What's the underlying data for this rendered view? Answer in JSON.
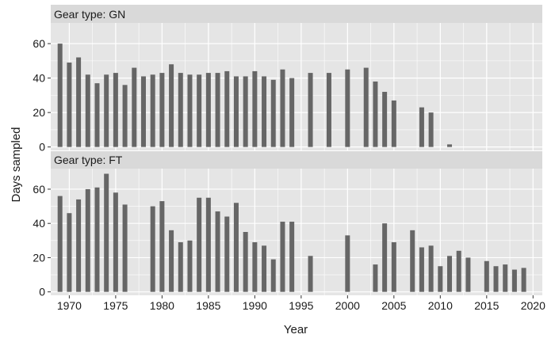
{
  "chart_data": {
    "type": "bar",
    "xlabel": "Year",
    "ylabel": "Days sampled",
    "xlim": [
      1968,
      2021
    ],
    "x_ticks": [
      1970,
      1975,
      1980,
      1985,
      1990,
      1995,
      2000,
      2005,
      2010,
      2015,
      2020
    ],
    "y_ticks": [
      0,
      20,
      40,
      60
    ],
    "grid": true,
    "colors": {
      "bar": "#666666",
      "panel": "#e5e5e5",
      "gridline": "#ffffff"
    },
    "panels": [
      {
        "label": "Gear type: GN",
        "ylim": [
          -2,
          72
        ],
        "x": [
          1969,
          1970,
          1971,
          1972,
          1973,
          1974,
          1975,
          1976,
          1977,
          1978,
          1979,
          1980,
          1981,
          1982,
          1983,
          1984,
          1985,
          1986,
          1987,
          1988,
          1989,
          1990,
          1991,
          1992,
          1993,
          1994,
          1996,
          1998,
          2000,
          2002,
          2003,
          2004,
          2005,
          2008,
          2009,
          2011
        ],
        "values": [
          60,
          49,
          52,
          42,
          37,
          42,
          43,
          36,
          46,
          41,
          42,
          43,
          48,
          43,
          42,
          42,
          43,
          43,
          44,
          41,
          41,
          44,
          41,
          39,
          45,
          40,
          43,
          43,
          45,
          46,
          38,
          32,
          27,
          23,
          20,
          1.5
        ]
      },
      {
        "label": "Gear type: FT",
        "ylim": [
          -2,
          72
        ],
        "x": [
          1969,
          1970,
          1971,
          1972,
          1973,
          1974,
          1975,
          1976,
          1979,
          1980,
          1981,
          1982,
          1983,
          1984,
          1985,
          1986,
          1987,
          1988,
          1989,
          1990,
          1991,
          1992,
          1993,
          1994,
          1996,
          2000,
          2003,
          2004,
          2005,
          2007,
          2008,
          2009,
          2010,
          2011,
          2012,
          2013,
          2015,
          2016,
          2017,
          2018,
          2019
        ],
        "values": [
          56,
          46,
          54,
          60,
          61,
          69,
          58,
          51,
          50,
          53,
          36,
          29,
          30,
          55,
          55,
          47,
          44,
          52,
          35,
          29,
          27,
          19,
          41,
          41,
          21,
          33,
          16,
          40,
          29,
          36,
          26,
          27,
          15,
          21,
          24,
          20,
          18,
          15,
          16,
          13,
          14
        ]
      }
    ]
  }
}
